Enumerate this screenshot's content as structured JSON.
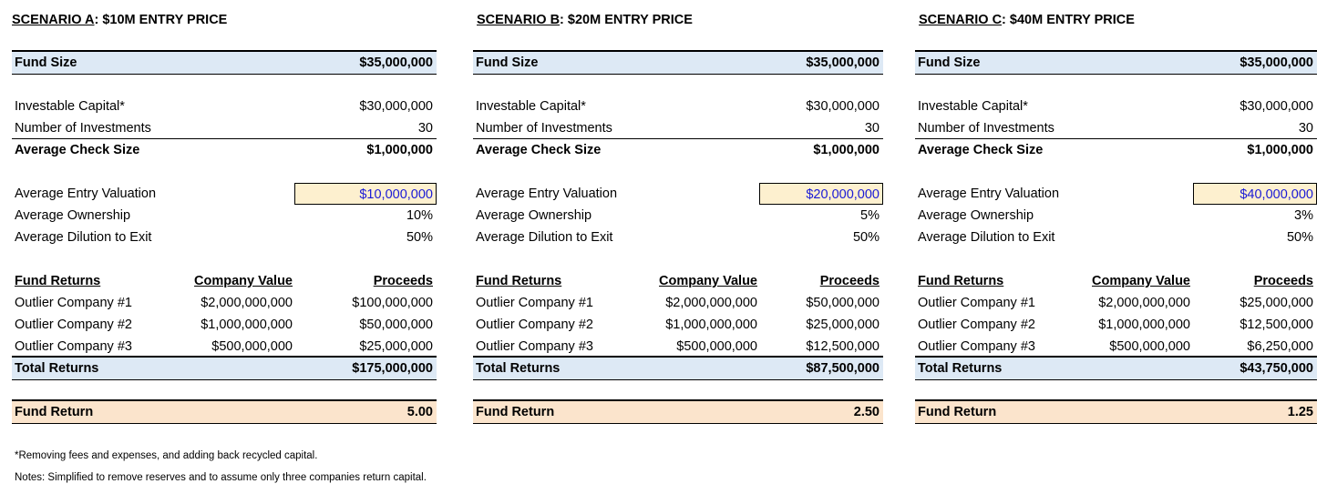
{
  "scenarios": [
    {
      "title_prefix": "SCENARIO A",
      "title_suffix": ": $10M ENTRY PRICE",
      "fund_size_label": "Fund Size",
      "fund_size": "$35,000,000",
      "investable_label": "Investable Capital*",
      "investable": "$30,000,000",
      "num_label": "Number of Investments",
      "num": "30",
      "check_label": "Average Check Size",
      "check": "$1,000,000",
      "entry_label": "Average Entry Valuation",
      "entry": "$10,000,000",
      "ownership_label": "Average Ownership",
      "ownership": "10%",
      "dilution_label": "Average Dilution to Exit",
      "dilution": "50%",
      "returns_header": "Fund Returns",
      "company_value_header": "Company Value",
      "proceeds_header": "Proceeds",
      "companies": [
        {
          "name": "Outlier Company #1",
          "value": "$2,000,000,000",
          "proceeds": "$100,000,000"
        },
        {
          "name": "Outlier Company #2",
          "value": "$1,000,000,000",
          "proceeds": "$50,000,000"
        },
        {
          "name": "Outlier Company #3",
          "value": "$500,000,000",
          "proceeds": "$25,000,000"
        }
      ],
      "total_label": "Total Returns",
      "total": "$175,000,000",
      "fund_return_label": "Fund Return",
      "fund_return": "5.00"
    },
    {
      "title_prefix": "SCENARIO B",
      "title_suffix": ": $20M ENTRY PRICE",
      "fund_size_label": "Fund Size",
      "fund_size": "$35,000,000",
      "investable_label": "Investable Capital*",
      "investable": "$30,000,000",
      "num_label": "Number of Investments",
      "num": "30",
      "check_label": "Average Check Size",
      "check": "$1,000,000",
      "entry_label": "Average Entry Valuation",
      "entry": "$20,000,000",
      "ownership_label": "Average Ownership",
      "ownership": "5%",
      "dilution_label": "Average Dilution to Exit",
      "dilution": "50%",
      "returns_header": "Fund Returns",
      "company_value_header": "Company Value",
      "proceeds_header": "Proceeds",
      "companies": [
        {
          "name": "Outlier Company #1",
          "value": "$2,000,000,000",
          "proceeds": "$50,000,000"
        },
        {
          "name": "Outlier Company #2",
          "value": "$1,000,000,000",
          "proceeds": "$25,000,000"
        },
        {
          "name": "Outlier Company #3",
          "value": "$500,000,000",
          "proceeds": "$12,500,000"
        }
      ],
      "total_label": "Total Returns",
      "total": "$87,500,000",
      "fund_return_label": "Fund Return",
      "fund_return": "2.50"
    },
    {
      "title_prefix": "SCENARIO C",
      "title_suffix": ": $40M ENTRY PRICE",
      "fund_size_label": "Fund Size",
      "fund_size": "$35,000,000",
      "investable_label": "Investable Capital*",
      "investable": "$30,000,000",
      "num_label": "Number of Investments",
      "num": "30",
      "check_label": "Average Check Size",
      "check": "$1,000,000",
      "entry_label": "Average Entry Valuation",
      "entry": "$40,000,000",
      "ownership_label": "Average Ownership",
      "ownership": "3%",
      "dilution_label": "Average Dilution to Exit",
      "dilution": "50%",
      "returns_header": "Fund Returns",
      "company_value_header": "Company Value",
      "proceeds_header": "Proceeds",
      "companies": [
        {
          "name": "Outlier Company #1",
          "value": "$2,000,000,000",
          "proceeds": "$25,000,000"
        },
        {
          "name": "Outlier Company #2",
          "value": "$1,000,000,000",
          "proceeds": "$12,500,000"
        },
        {
          "name": "Outlier Company #3",
          "value": "$500,000,000",
          "proceeds": "$6,250,000"
        }
      ],
      "total_label": "Total Returns",
      "total": "$43,750,000",
      "fund_return_label": "Fund Return",
      "fund_return": "1.25"
    }
  ],
  "footnotes": {
    "note1": "*Removing fees and expenses, and adding back recycled capital.",
    "note2": "Notes: Simplified to remove reserves and to assume only three companies return capital."
  },
  "colors": {
    "header_band": "#dde9f5",
    "fund_return_band": "#fbe4cc",
    "input_fill": "#fdf0cf",
    "input_text": "#1b1bd6"
  }
}
